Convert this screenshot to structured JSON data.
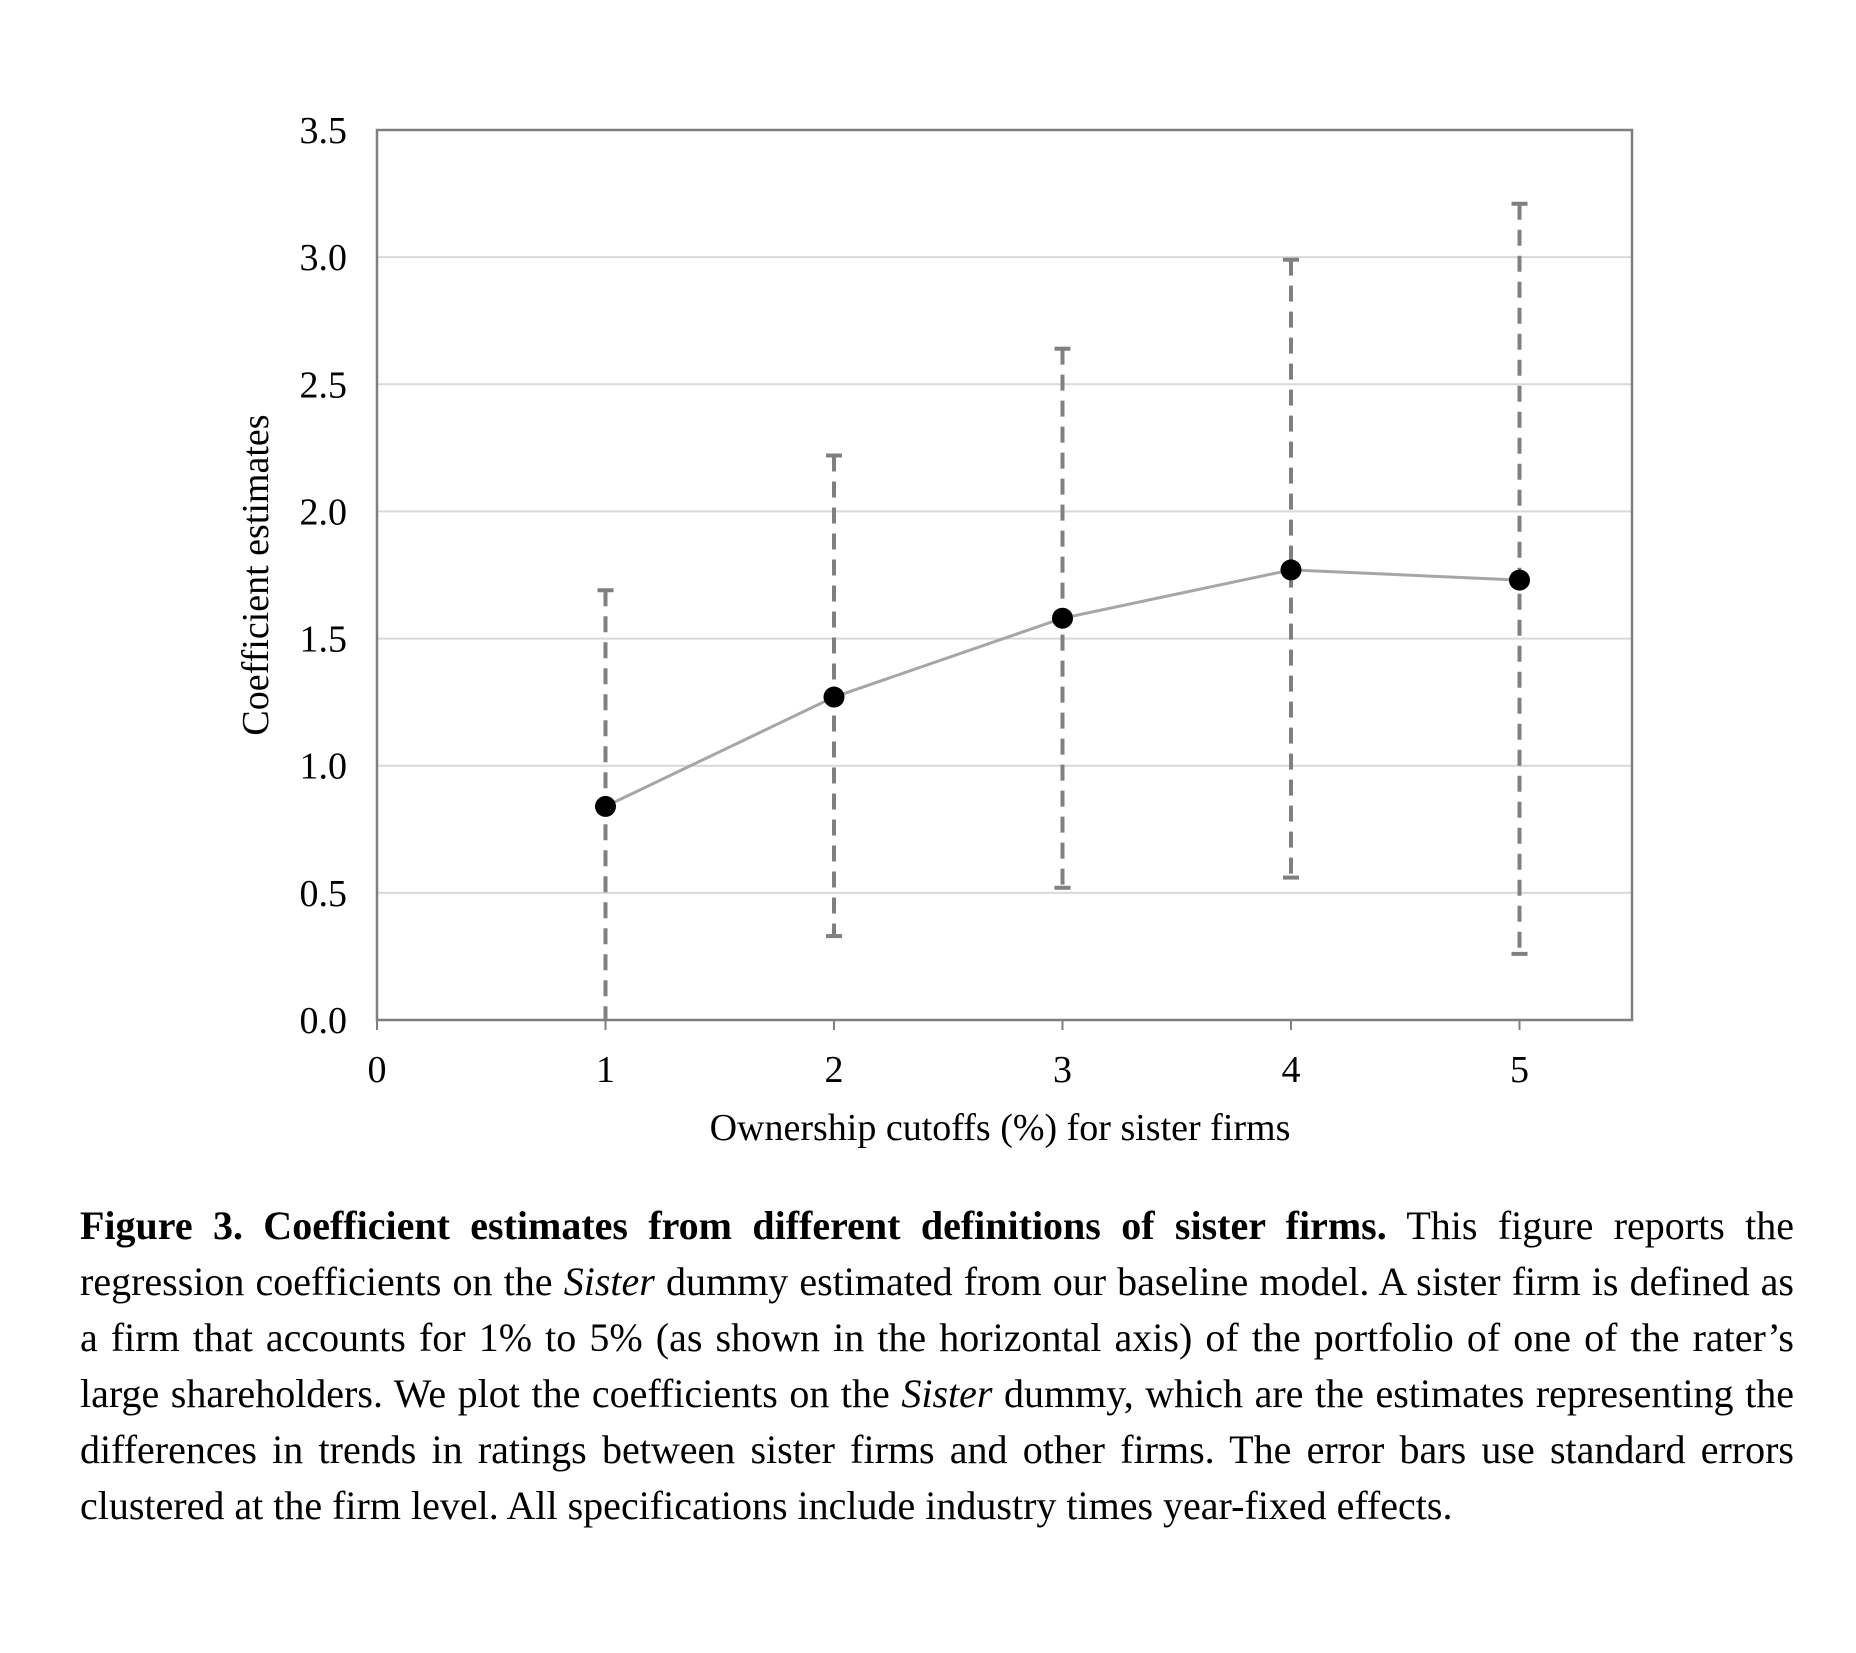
{
  "chart_data": {
    "type": "scatter",
    "xlabel": "Ownership cutoffs (%) for sister firms",
    "ylabel": "Coefficient estimates",
    "xlim": [
      0,
      5.5
    ],
    "ylim": [
      0,
      3.5
    ],
    "x_ticks": [
      "0",
      "1",
      "2",
      "3",
      "4",
      "5"
    ],
    "y_ticks": [
      "0.0",
      "0.5",
      "1.0",
      "1.5",
      "2.0",
      "2.5",
      "3.0",
      "3.5"
    ],
    "grid": "horizontal",
    "connect_points": true,
    "series": [
      {
        "x": [
          1,
          2,
          3,
          4,
          5
        ],
        "y": [
          0.84,
          1.27,
          1.58,
          1.77,
          1.73
        ],
        "error_low": [
          0.0,
          0.33,
          0.52,
          0.56,
          0.26
        ],
        "error_high": [
          1.69,
          2.22,
          2.64,
          2.99,
          3.21
        ]
      }
    ],
    "colors": {
      "marker": "#000000",
      "line": "#a6a6a6",
      "error_bar": "#808080",
      "grid": "#d9d9d9",
      "frame": "#7f7f7f"
    }
  },
  "caption": {
    "title": "Figure 3. Coefficient estimates from different definitions of sister firms.",
    "part1": " This figure reports the regression coefficients on the ",
    "italic1": "Sister",
    "part2": " dummy estimated from our baseline model. A sister firm is defined as a firm that accounts for 1% to 5% (as shown in the horizontal axis) of the portfolio of one of the rater’s large shareholders. We plot the coefficients on the ",
    "italic2": "Sister",
    "part3": " dummy, which are the estimates representing the differences in trends in ratings between sister firms and other firms. The error bars use standard errors clustered at the firm level. All specifications include industry times year-fixed effects."
  }
}
